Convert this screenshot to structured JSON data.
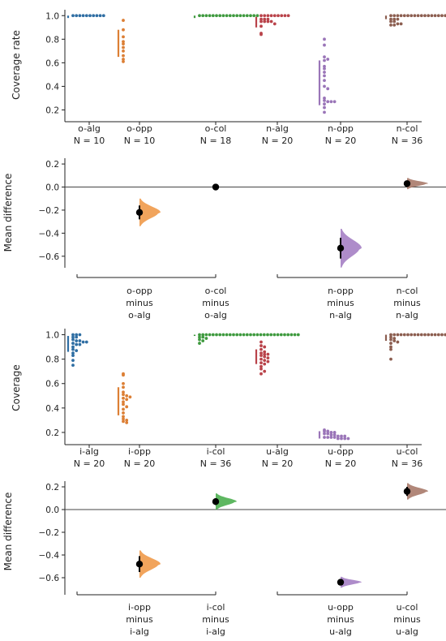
{
  "figure": {
    "panels": [
      {
        "id": "top-swarm",
        "ylabel": "Coverage rate",
        "ylim": [
          0.1,
          1.05
        ],
        "yticks": [
          0.2,
          0.4,
          0.6,
          0.8,
          1.0
        ],
        "groups": [
          {
            "label": "o-alg",
            "n": "N = 10",
            "color": "#2f6ea3",
            "ci": [
              0.98,
              1.0
            ],
            "values": [
              1,
              1,
              1,
              1,
              1,
              1,
              1,
              1,
              1,
              1
            ]
          },
          {
            "label": "o-opp",
            "n": "N = 10",
            "color": "#dc7f35",
            "ci": [
              0.65,
              0.88
            ],
            "values": [
              0.96,
              0.88,
              0.82,
              0.78,
              0.76,
              0.73,
              0.7,
              0.66,
              0.63,
              0.61
            ]
          },
          {
            "label": "o-col",
            "n": "N = 18",
            "color": "#3f9a3f",
            "ci": [
              0.98,
              1.0
            ],
            "values": [
              1,
              1,
              1,
              1,
              1,
              1,
              1,
              1,
              1,
              1,
              1,
              1,
              1,
              1,
              1,
              1,
              1,
              1
            ]
          },
          {
            "label": "n-alg",
            "n": "N = 20",
            "color": "#b9434a",
            "ci": [
              0.9,
              0.99
            ],
            "values": [
              1,
              1,
              1,
              1,
              1,
              1,
              1,
              1,
              1,
              0.97,
              0.97,
              0.97,
              0.95,
              0.95,
              0.95,
              0.95,
              0.93,
              0.91,
              0.85,
              0.84
            ]
          },
          {
            "label": "n-opp",
            "n": "N = 20",
            "color": "#9a75b8",
            "ci": [
              0.24,
              0.62
            ],
            "values": [
              0.8,
              0.75,
              0.65,
              0.63,
              0.62,
              0.57,
              0.55,
              0.52,
              0.49,
              0.45,
              0.4,
              0.38,
              0.3,
              0.28,
              0.27,
              0.27,
              0.27,
              0.25,
              0.22,
              0.18
            ]
          },
          {
            "label": "n-col",
            "n": "N = 36",
            "color": "#8c5e50",
            "ci": [
              0.97,
              1.0
            ],
            "values": [
              1,
              1,
              1,
              1,
              1,
              1,
              1,
              1,
              1,
              1,
              1,
              1,
              1,
              1,
              1,
              1,
              1,
              1,
              1,
              1,
              1,
              1,
              1,
              1,
              1,
              1,
              1,
              0.97,
              0.97,
              0.97,
              0.95,
              0.95,
              0.93,
              0.93,
              0.92,
              0.92
            ]
          }
        ]
      },
      {
        "id": "top-diff",
        "ylabel": "Mean difference",
        "ylim": [
          -0.7,
          0.25
        ],
        "yticks": [
          0.2,
          0.0,
          -0.2,
          -0.4,
          -0.6
        ],
        "ticklabels": [
          "0.2",
          "0.0",
          "−0.2",
          "−0.4",
          "−0.6"
        ],
        "slots": [
          {
            "label": [
              "",
              "",
              ""
            ],
            "mean": null
          },
          {
            "label": [
              "o-opp",
              "minus",
              "o-alg"
            ],
            "mean": -0.22,
            "ci": [
              -0.28,
              -0.16
            ],
            "color": "#f09a4a",
            "spread": 0.05
          },
          {
            "label": [
              "o-col",
              "minus",
              "o-alg"
            ],
            "mean": 0.0,
            "ci": [
              0.0,
              0.0
            ],
            "color": "#4caf50",
            "spread": 0
          },
          {
            "label": [
              "",
              "",
              ""
            ],
            "mean": null
          },
          {
            "label": [
              "n-opp",
              "minus",
              "n-alg"
            ],
            "mean": -0.53,
            "ci": [
              -0.62,
              -0.44
            ],
            "color": "#a57fc4",
            "spread": 0.07
          },
          {
            "label": [
              "n-col",
              "minus",
              "n-alg"
            ],
            "mean": 0.03,
            "ci": [
              0.0,
              0.05
            ],
            "color": "#a87a6a",
            "spread": 0.02
          }
        ]
      },
      {
        "id": "bottom-swarm",
        "ylabel": "Coverage",
        "ylim": [
          0.1,
          1.05
        ],
        "yticks": [
          0.2,
          0.4,
          0.6,
          0.8,
          1.0
        ],
        "groups": [
          {
            "label": "i-alg",
            "n": "N = 20",
            "color": "#2f6ea3",
            "ci": [
              0.86,
              0.99
            ],
            "values": [
              1,
              1,
              1,
              0.98,
              0.98,
              0.96,
              0.95,
              0.95,
              0.94,
              0.94,
              0.93,
              0.92,
              0.92,
              0.9,
              0.88,
              0.87,
              0.85,
              0.83,
              0.79,
              0.75
            ]
          },
          {
            "label": "i-opp",
            "n": "N = 20",
            "color": "#dc7f35",
            "ci": [
              0.34,
              0.57
            ],
            "values": [
              0.68,
              0.67,
              0.6,
              0.57,
              0.53,
              0.51,
              0.5,
              0.49,
              0.48,
              0.47,
              0.45,
              0.43,
              0.41,
              0.39,
              0.36,
              0.33,
              0.31,
              0.3,
              0.29,
              0.28
            ]
          },
          {
            "label": "i-col",
            "n": "N = 36",
            "color": "#3f9a3f",
            "ci": [
              0.99,
              1.0
            ],
            "values": [
              1,
              1,
              1,
              1,
              1,
              1,
              1,
              1,
              1,
              1,
              1,
              1,
              1,
              1,
              1,
              1,
              1,
              1,
              1,
              1,
              1,
              1,
              1,
              1,
              1,
              1,
              1,
              1,
              1,
              1,
              0.98,
              0.98,
              0.97,
              0.96,
              0.95,
              0.93
            ]
          },
          {
            "label": "u-alg",
            "n": "N = 20",
            "color": "#b9434a",
            "ci": [
              0.76,
              0.88
            ],
            "values": [
              0.94,
              0.91,
              0.9,
              0.88,
              0.86,
              0.85,
              0.84,
              0.84,
              0.83,
              0.82,
              0.81,
              0.8,
              0.79,
              0.78,
              0.77,
              0.76,
              0.74,
              0.72,
              0.7,
              0.68
            ]
          },
          {
            "label": "u-opp",
            "n": "N = 20",
            "color": "#9a75b8",
            "ci": [
              0.15,
              0.21
            ],
            "values": [
              0.22,
              0.21,
              0.21,
              0.2,
              0.2,
              0.19,
              0.19,
              0.18,
              0.18,
              0.17,
              0.17,
              0.17,
              0.16,
              0.16,
              0.16,
              0.16,
              0.15,
              0.15,
              0.15,
              0.15
            ]
          },
          {
            "label": "u-col",
            "n": "N = 36",
            "color": "#8c5e50",
            "ci": [
              0.95,
              1.0
            ],
            "values": [
              1,
              1,
              1,
              1,
              1,
              1,
              1,
              1,
              1,
              1,
              1,
              1,
              1,
              1,
              1,
              1,
              1,
              1,
              1,
              1,
              1,
              1,
              1,
              1,
              1,
              1,
              1,
              0.98,
              0.97,
              0.96,
              0.95,
              0.94,
              0.93,
              0.9,
              0.88,
              0.8
            ]
          }
        ]
      },
      {
        "id": "bottom-diff",
        "ylabel": "Mean difference",
        "ylim": [
          -0.75,
          0.25
        ],
        "yticks": [
          0.2,
          0.0,
          -0.2,
          -0.4,
          -0.6
        ],
        "ticklabels": [
          "0.2",
          "0.0",
          "−0.2",
          "−0.4",
          "−0.6"
        ],
        "slots": [
          {
            "label": [
              "",
              "",
              ""
            ],
            "mean": null
          },
          {
            "label": [
              "i-opp",
              "minus",
              "i-alg"
            ],
            "mean": -0.48,
            "ci": [
              -0.55,
              -0.41
            ],
            "color": "#f09a4a",
            "spread": 0.05
          },
          {
            "label": [
              "i-col",
              "minus",
              "i-alg"
            ],
            "mean": 0.07,
            "ci": [
              0.04,
              0.1
            ],
            "color": "#4caf50",
            "spread": 0.03
          },
          {
            "label": [
              "",
              "",
              ""
            ],
            "mean": null
          },
          {
            "label": [
              "u-opp",
              "minus",
              "u-alg"
            ],
            "mean": -0.64,
            "ci": [
              -0.66,
              -0.62
            ],
            "color": "#a57fc4",
            "spread": 0.02
          },
          {
            "label": [
              "u-col",
              "minus",
              "u-alg"
            ],
            "mean": 0.16,
            "ci": [
              0.12,
              0.2
            ],
            "color": "#a87a6a",
            "spread": 0.03
          }
        ]
      }
    ]
  },
  "chart_data": [
    {
      "type": "scatter",
      "ylabel": "Coverage rate",
      "categories": [
        "o-alg",
        "o-opp",
        "o-col",
        "n-alg",
        "n-opp",
        "n-col"
      ],
      "n": [
        10,
        10,
        18,
        20,
        20,
        36
      ],
      "ylim": [
        0.1,
        1.05
      ]
    },
    {
      "type": "scatter",
      "ylabel": "Mean difference",
      "categories": [
        "o-opp minus o-alg",
        "o-col minus o-alg",
        "n-opp minus n-alg",
        "n-col minus n-alg"
      ],
      "values": [
        -0.22,
        0.0,
        -0.53,
        0.03
      ],
      "ylim": [
        -0.7,
        0.25
      ]
    },
    {
      "type": "scatter",
      "ylabel": "Coverage",
      "categories": [
        "i-alg",
        "i-opp",
        "i-col",
        "u-alg",
        "u-opp",
        "u-col"
      ],
      "n": [
        20,
        20,
        36,
        20,
        20,
        36
      ],
      "ylim": [
        0.1,
        1.05
      ]
    },
    {
      "type": "scatter",
      "ylabel": "Mean difference",
      "categories": [
        "i-opp minus i-alg",
        "i-col minus i-alg",
        "u-opp minus u-alg",
        "u-col minus u-alg"
      ],
      "values": [
        -0.48,
        0.07,
        -0.64,
        0.16
      ],
      "ylim": [
        -0.75,
        0.25
      ]
    }
  ]
}
